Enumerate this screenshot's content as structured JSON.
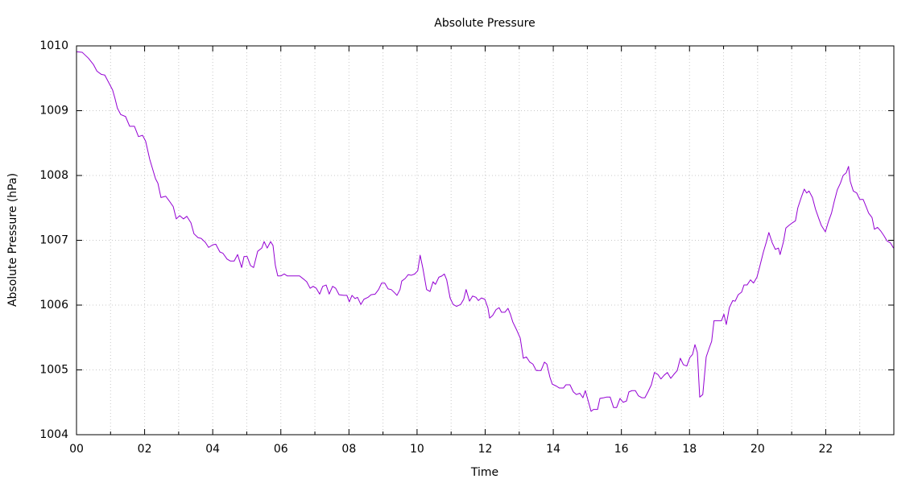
{
  "chart_data": {
    "type": "line",
    "title": "Absolute Pressure",
    "x_label": "Time",
    "y_label": "Absolute Pressure (hPa)",
    "color": "#9400d3",
    "grid": true,
    "xlim": [
      0,
      24
    ],
    "ylim": [
      1004,
      1010
    ],
    "xticks": [
      {
        "value": 0,
        "label": "00"
      },
      {
        "value": 2,
        "label": "02"
      },
      {
        "value": 4,
        "label": "04"
      },
      {
        "value": 6,
        "label": "06"
      },
      {
        "value": 8,
        "label": "08"
      },
      {
        "value": 10,
        "label": "10"
      },
      {
        "value": 12,
        "label": "12"
      },
      {
        "value": 14,
        "label": "14"
      },
      {
        "value": 16,
        "label": "16"
      },
      {
        "value": 18,
        "label": "18"
      },
      {
        "value": 20,
        "label": "20"
      },
      {
        "value": 22,
        "label": "22"
      }
    ],
    "xminorticks": [
      1,
      3,
      5,
      7,
      9,
      11,
      13,
      15,
      17,
      19,
      21,
      23
    ],
    "yticks": [
      1004,
      1005,
      1006,
      1007,
      1008,
      1009,
      1010
    ],
    "x": [
      0,
      0.17,
      0.35,
      0.5,
      0.6,
      0.73,
      0.83,
      0.95,
      1.06,
      1.13,
      1.2,
      1.3,
      1.44,
      1.56,
      1.7,
      1.82,
      1.94,
      2.03,
      2.15,
      2.32,
      2.39,
      2.48,
      2.62,
      2.72,
      2.84,
      2.93,
      3.03,
      3.14,
      3.24,
      3.36,
      3.45,
      3.57,
      3.66,
      3.78,
      3.88,
      4.0,
      4.09,
      4.21,
      4.3,
      4.42,
      4.52,
      4.63,
      4.73,
      4.85,
      4.92,
      5.01,
      5.11,
      5.2,
      5.32,
      5.44,
      5.51,
      5.6,
      5.7,
      5.77,
      5.84,
      5.91,
      6.0,
      6.1,
      6.19,
      6.38,
      6.55,
      6.67,
      6.76,
      6.86,
      6.95,
      7.04,
      7.14,
      7.23,
      7.33,
      7.42,
      7.52,
      7.61,
      7.71,
      7.85,
      7.94,
      8.01,
      8.09,
      8.18,
      8.25,
      8.35,
      8.44,
      8.56,
      8.65,
      8.77,
      8.87,
      8.96,
      9.05,
      9.15,
      9.24,
      9.34,
      9.41,
      9.5,
      9.55,
      9.65,
      9.74,
      9.83,
      9.93,
      10.02,
      10.09,
      10.17,
      10.28,
      10.38,
      10.47,
      10.54,
      10.64,
      10.73,
      10.8,
      10.87,
      10.97,
      11.06,
      11.16,
      11.28,
      11.37,
      11.44,
      11.54,
      11.63,
      11.73,
      11.8,
      11.89,
      11.99,
      12.08,
      12.13,
      12.22,
      12.32,
      12.41,
      12.48,
      12.58,
      12.67,
      12.74,
      12.81,
      12.93,
      13.03,
      13.12,
      13.21,
      13.31,
      13.4,
      13.5,
      13.64,
      13.74,
      13.81,
      13.9,
      13.97,
      14.09,
      14.18,
      14.3,
      14.37,
      14.49,
      14.59,
      14.68,
      14.78,
      14.87,
      14.94,
      15.01,
      15.11,
      15.18,
      15.3,
      15.37,
      15.48,
      15.56,
      15.67,
      15.77,
      15.86,
      15.96,
      16.05,
      16.15,
      16.22,
      16.31,
      16.41,
      16.5,
      16.6,
      16.69,
      16.78,
      16.88,
      16.97,
      17.07,
      17.16,
      17.26,
      17.35,
      17.45,
      17.54,
      17.64,
      17.73,
      17.82,
      17.92,
      18.01,
      18.09,
      18.16,
      18.23,
      18.3,
      18.39,
      18.49,
      18.58,
      18.65,
      18.72,
      18.84,
      18.94,
      19.01,
      19.08,
      19.17,
      19.27,
      19.34,
      19.43,
      19.53,
      19.6,
      19.69,
      19.79,
      19.88,
      19.98,
      20.07,
      20.17,
      20.26,
      20.33,
      20.43,
      20.52,
      20.61,
      20.66,
      20.76,
      20.83,
      20.92,
      21.02,
      21.11,
      21.18,
      21.28,
      21.37,
      21.44,
      21.51,
      21.61,
      21.7,
      21.8,
      21.87,
      21.99,
      22.08,
      22.17,
      22.25,
      22.34,
      22.43,
      22.51,
      22.6,
      22.67,
      22.72,
      22.81,
      22.91,
      23.0,
      23.1,
      23.17,
      23.26,
      23.36,
      23.43,
      23.52,
      23.62,
      23.71,
      23.8,
      23.9,
      23.99
    ],
    "values": [
      1009.91,
      1009.9,
      1009.81,
      1009.71,
      1009.61,
      1009.56,
      1009.55,
      1009.43,
      1009.32,
      1009.19,
      1009.04,
      1008.94,
      1008.91,
      1008.76,
      1008.76,
      1008.6,
      1008.62,
      1008.53,
      1008.25,
      1007.95,
      1007.88,
      1007.66,
      1007.68,
      1007.61,
      1007.52,
      1007.33,
      1007.38,
      1007.33,
      1007.37,
      1007.27,
      1007.1,
      1007.04,
      1007.03,
      1006.97,
      1006.89,
      1006.93,
      1006.94,
      1006.82,
      1006.8,
      1006.71,
      1006.68,
      1006.68,
      1006.78,
      1006.58,
      1006.75,
      1006.75,
      1006.61,
      1006.58,
      1006.83,
      1006.88,
      1006.98,
      1006.88,
      1006.98,
      1006.92,
      1006.61,
      1006.45,
      1006.45,
      1006.48,
      1006.45,
      1006.45,
      1006.45,
      1006.4,
      1006.36,
      1006.26,
      1006.29,
      1006.26,
      1006.17,
      1006.29,
      1006.31,
      1006.17,
      1006.29,
      1006.26,
      1006.16,
      1006.15,
      1006.15,
      1006.05,
      1006.15,
      1006.1,
      1006.12,
      1006.01,
      1006.09,
      1006.12,
      1006.16,
      1006.17,
      1006.24,
      1006.34,
      1006.34,
      1006.25,
      1006.24,
      1006.19,
      1006.15,
      1006.24,
      1006.37,
      1006.41,
      1006.47,
      1006.46,
      1006.48,
      1006.53,
      1006.77,
      1006.57,
      1006.24,
      1006.21,
      1006.36,
      1006.32,
      1006.43,
      1006.45,
      1006.48,
      1006.39,
      1006.11,
      1006.01,
      1005.98,
      1006.01,
      1006.09,
      1006.24,
      1006.06,
      1006.14,
      1006.12,
      1006.07,
      1006.11,
      1006.09,
      1005.96,
      1005.8,
      1005.84,
      1005.93,
      1005.96,
      1005.89,
      1005.89,
      1005.95,
      1005.86,
      1005.74,
      1005.61,
      1005.49,
      1005.18,
      1005.2,
      1005.12,
      1005.09,
      1004.99,
      1004.99,
      1005.12,
      1005.09,
      1004.89,
      1004.78,
      1004.75,
      1004.72,
      1004.72,
      1004.77,
      1004.77,
      1004.66,
      1004.62,
      1004.64,
      1004.57,
      1004.68,
      1004.55,
      1004.36,
      1004.39,
      1004.39,
      1004.56,
      1004.57,
      1004.58,
      1004.58,
      1004.42,
      1004.42,
      1004.56,
      1004.5,
      1004.52,
      1004.66,
      1004.68,
      1004.68,
      1004.6,
      1004.57,
      1004.57,
      1004.66,
      1004.77,
      1004.96,
      1004.93,
      1004.86,
      1004.92,
      1004.96,
      1004.87,
      1004.93,
      1004.99,
      1005.18,
      1005.08,
      1005.06,
      1005.19,
      1005.24,
      1005.39,
      1005.27,
      1004.58,
      1004.62,
      1005.2,
      1005.34,
      1005.44,
      1005.76,
      1005.76,
      1005.76,
      1005.86,
      1005.7,
      1005.96,
      1006.07,
      1006.06,
      1006.16,
      1006.2,
      1006.31,
      1006.31,
      1006.39,
      1006.34,
      1006.43,
      1006.61,
      1006.82,
      1006.98,
      1007.12,
      1006.96,
      1006.86,
      1006.88,
      1006.78,
      1006.98,
      1007.19,
      1007.23,
      1007.27,
      1007.3,
      1007.5,
      1007.66,
      1007.79,
      1007.73,
      1007.76,
      1007.66,
      1007.48,
      1007.33,
      1007.23,
      1007.13,
      1007.29,
      1007.42,
      1007.6,
      1007.78,
      1007.88,
      1008.0,
      1008.04,
      1008.14,
      1007.91,
      1007.76,
      1007.73,
      1007.63,
      1007.63,
      1007.54,
      1007.42,
      1007.35,
      1007.17,
      1007.2,
      1007.14,
      1007.07,
      1006.99,
      1006.96,
      1006.88
    ]
  }
}
